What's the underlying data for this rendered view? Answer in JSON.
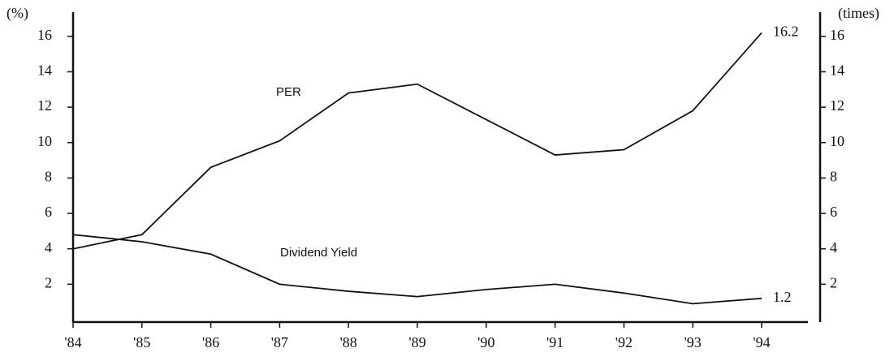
{
  "chart_data": {
    "type": "line",
    "y_label": "(%)",
    "y2_label": "(times)",
    "categories": [
      "'84",
      "'85",
      "'86",
      "'87",
      "'88",
      "'89",
      "'90",
      "'91",
      "'92",
      "'93",
      "'94"
    ],
    "series": [
      {
        "name": "PER",
        "color": "#111111",
        "axis": "y2",
        "values": [
          4.0,
          4.8,
          8.6,
          10.1,
          12.8,
          13.3,
          11.3,
          9.3,
          9.6,
          11.8,
          16.2
        ]
      },
      {
        "name": "Dividend Yield",
        "color": "#111111",
        "values": [
          4.8,
          4.4,
          3.7,
          2.0,
          1.6,
          1.3,
          1.7,
          2.0,
          1.5,
          0.9,
          1.2
        ]
      }
    ],
    "ylim": [
      0,
      17
    ],
    "yticks": [
      2,
      4,
      6,
      8,
      10,
      12,
      14,
      16
    ],
    "y2lim": [
      0,
      17
    ],
    "y2ticks": [
      2,
      4,
      6,
      8,
      10,
      12,
      14,
      16
    ]
  }
}
